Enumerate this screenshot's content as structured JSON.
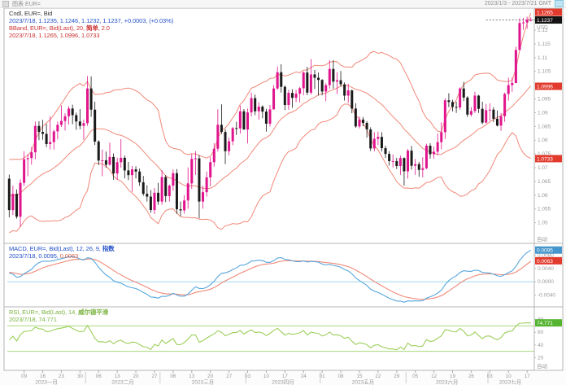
{
  "header": {
    "title": "图表 EUR=",
    "range": "2023/1/3 - 2023/7/21 GMT"
  },
  "colors": {
    "up": "#e0148c",
    "down": "#1a1a1a",
    "band": "#f08878",
    "macd": "#58a6dc",
    "signal": "#f08878",
    "zero_line": "#aadcf0",
    "rsi": "#9ccf5a",
    "rsi_level": "#aad87c",
    "badge_red": "#e23b2e",
    "badge_black": "#141414",
    "badge_blue": "#4496cc",
    "badge_green": "#55b430",
    "axis_text": "#999999",
    "frame": "#b5b5b5",
    "last_price_line": "#555555",
    "marker_green": "#3fae2a"
  },
  "legend_price": {
    "line1": "Cndl, EUR=, Bid",
    "line2": "2023/7/18, 1.1235, 1.1246, 1.1232, 1.1237, +0.0003, (+0.03%)",
    "line3_pre": "BBand, EUR=, Bid(Last), 20, ",
    "line3_type": "简单",
    "line3_post": ", 2.0",
    "line4": "2023/7/18, 1.1265, 1.0996, 1.0733"
  },
  "legend_macd": {
    "line1_pre": "MACD, EUR=, Bid(Last), 12, 26, 9, ",
    "line1_type": "指数",
    "line2_pre": "2023/7/18, 0.0095, ",
    "line2_signal": "0.0063"
  },
  "legend_rsi": {
    "line1_pre": "RSI, EUR=, Bid(Last), 14, ",
    "line1_type": "威尔德平滑",
    "line2": "2023/7/18, 74.771"
  },
  "chart_data": {
    "type": "candlestick",
    "title": "EUR=, Bid, daily candles with BBand(20,2), MACD(12,26,9), RSI(14)",
    "x_range_label": "2023/1/3 - 2023/7/21 GMT",
    "x_axis": {
      "day_tick_indices": [
        4,
        9,
        14,
        19,
        24,
        29,
        34,
        39,
        44,
        49,
        54,
        59,
        64,
        69,
        74,
        79,
        84,
        89,
        94,
        99,
        104,
        109,
        114,
        119,
        124,
        129,
        134,
        139
      ],
      "day_tick_labels": [
        "09",
        "16",
        "23",
        "30",
        "06",
        "13",
        "20",
        "27",
        "06",
        "13",
        "20",
        "27",
        "03",
        "10",
        "17",
        "24",
        "01",
        "08",
        "15",
        "22",
        "29",
        "05",
        "12",
        "19",
        "26",
        "03",
        "10",
        "17"
      ],
      "months": [
        {
          "label": "2023一月",
          "start": 0,
          "end": 20
        },
        {
          "label": "2023二月",
          "start": 21,
          "end": 40
        },
        {
          "label": "2023三月",
          "start": 41,
          "end": 63
        },
        {
          "label": "2023四月",
          "start": 64,
          "end": 83
        },
        {
          "label": "2023五月",
          "start": 84,
          "end": 106
        },
        {
          "label": "2023六月",
          "start": 107,
          "end": 128
        },
        {
          "label": "2023七月",
          "start": 129,
          "end": 140
        }
      ]
    },
    "price_pane": {
      "ylim": [
        1.0425,
        1.128
      ],
      "ticks": [
        1.12,
        1.115,
        1.11,
        1.105,
        1.1,
        1.095,
        1.09,
        1.085,
        1.08,
        1.075,
        1.07,
        1.065,
        1.06,
        1.055,
        1.05
      ],
      "unit_label": "USD",
      "scale_mode_label": "自动",
      "bb_period": 20,
      "bb_width": 2,
      "badges": [
        {
          "value": 1.1265,
          "label": "1.1265",
          "type": "red"
        },
        {
          "value": 1.1237,
          "label": "1.1237",
          "type": "black"
        },
        {
          "value": 1.0996,
          "label": "1.0996",
          "type": "red"
        },
        {
          "value": 1.0733,
          "label": "1.0733",
          "type": "red"
        }
      ],
      "last_close": 1.1237,
      "warmup_closes": [
        1.0527,
        1.0535,
        1.049,
        1.0467,
        1.0503,
        1.0551,
        1.0559,
        1.0627,
        1.063,
        1.0638,
        1.0685,
        1.0635,
        1.0661,
        1.0633,
        1.061,
        1.0637,
        1.064,
        1.0655,
        1.0705
      ],
      "candles": [
        [
          1.066,
          1.0675,
          1.0519,
          1.0546
        ],
        [
          1.0546,
          1.0635,
          1.0528,
          1.0605
        ],
        [
          1.0605,
          1.0621,
          1.0515,
          1.0522
        ],
        [
          1.0522,
          1.0658,
          1.0484,
          1.0645
        ],
        [
          1.0645,
          1.076,
          1.0634,
          1.0731
        ],
        [
          1.0731,
          1.0749,
          1.0669,
          1.0735
        ],
        [
          1.0735,
          1.0776,
          1.0711,
          1.0756
        ],
        [
          1.0756,
          1.0868,
          1.0731,
          1.0852
        ],
        [
          1.0852,
          1.0869,
          1.08,
          1.083
        ],
        [
          1.083,
          1.0874,
          1.0802,
          1.0823
        ],
        [
          1.0823,
          1.086,
          1.0775,
          1.0786
        ],
        [
          1.0786,
          1.0887,
          1.0766,
          1.0793
        ],
        [
          1.0793,
          1.0838,
          1.0766,
          1.0832
        ],
        [
          1.0832,
          1.0868,
          1.0803,
          1.0856
        ],
        [
          1.0856,
          1.0927,
          1.0848,
          1.087
        ],
        [
          1.087,
          1.0898,
          1.0835,
          1.0887
        ],
        [
          1.0887,
          1.0924,
          1.0857,
          1.0915
        ],
        [
          1.0915,
          1.0929,
          1.0858,
          1.0891
        ],
        [
          1.0891,
          1.09,
          1.0838,
          1.0868
        ],
        [
          1.0868,
          1.0913,
          1.084,
          1.0852
        ],
        [
          1.0852,
          1.0875,
          1.0802,
          1.0862
        ],
        [
          1.0862,
          1.1033,
          1.0852,
          1.0988
        ],
        [
          1.0988,
          1.1032,
          1.0885,
          1.0911
        ],
        [
          1.0911,
          1.094,
          1.0782,
          1.0795
        ],
        [
          1.0795,
          1.08,
          1.0709,
          1.0726
        ],
        [
          1.0726,
          1.0766,
          1.0669,
          1.0727
        ],
        [
          1.0727,
          1.0759,
          1.07,
          1.0711
        ],
        [
          1.0711,
          1.0791,
          1.0707,
          1.0739
        ],
        [
          1.0739,
          1.0752,
          1.0656,
          1.0679
        ],
        [
          1.0679,
          1.0736,
          1.0656,
          1.072
        ],
        [
          1.072,
          1.0804,
          1.07,
          1.0736
        ],
        [
          1.0736,
          1.0744,
          1.0661,
          1.069
        ],
        [
          1.069,
          1.0721,
          1.0655,
          1.0673
        ],
        [
          1.0673,
          1.0706,
          1.0612,
          1.0694
        ],
        [
          1.0694,
          1.0705,
          1.0661,
          1.0686
        ],
        [
          1.0686,
          1.0697,
          1.0634,
          1.0647
        ],
        [
          1.0647,
          1.067,
          1.0598,
          1.0605
        ],
        [
          1.0605,
          1.0636,
          1.0577,
          1.0595
        ],
        [
          1.0595,
          1.0619,
          1.0536,
          1.0546
        ],
        [
          1.0546,
          1.0626,
          1.0532,
          1.0609
        ],
        [
          1.0609,
          1.0645,
          1.0565,
          1.0577
        ],
        [
          1.0577,
          1.0691,
          1.0565,
          1.0666
        ],
        [
          1.0666,
          1.0673,
          1.0575,
          1.0597
        ],
        [
          1.0597,
          1.0639,
          1.0577,
          1.0635
        ],
        [
          1.0635,
          1.0694,
          1.0616,
          1.068
        ],
        [
          1.068,
          1.0695,
          1.0532,
          1.0549
        ],
        [
          1.0549,
          1.0577,
          1.0524,
          1.0545
        ],
        [
          1.0545,
          1.06,
          1.0533,
          1.0581
        ],
        [
          1.0581,
          1.0701,
          1.0551,
          1.0643
        ],
        [
          1.0643,
          1.0749,
          1.0623,
          1.0732
        ],
        [
          1.0732,
          1.076,
          1.0674,
          1.0734
        ],
        [
          1.0734,
          1.0746,
          1.0516,
          1.0577
        ],
        [
          1.0577,
          1.0635,
          1.0551,
          1.0611
        ],
        [
          1.0611,
          1.0686,
          1.0595,
          1.0665
        ],
        [
          1.0665,
          1.0738,
          1.0632,
          1.072
        ],
        [
          1.072,
          1.0789,
          1.0704,
          1.0769
        ],
        [
          1.0769,
          1.0912,
          1.0759,
          1.0856
        ],
        [
          1.0856,
          1.093,
          1.0823,
          1.083
        ],
        [
          1.083,
          1.084,
          1.0713,
          1.076
        ],
        [
          1.076,
          1.081,
          1.0745,
          1.0796
        ],
        [
          1.0796,
          1.0848,
          1.0782,
          1.0844
        ],
        [
          1.0844,
          1.0867,
          1.0819,
          1.0843
        ],
        [
          1.0843,
          1.0926,
          1.0824,
          1.0905
        ],
        [
          1.0905,
          1.0913,
          1.0838,
          1.0839
        ],
        [
          1.0839,
          1.0915,
          1.0788,
          1.0901
        ],
        [
          1.0901,
          1.0973,
          1.0886,
          1.0953
        ],
        [
          1.0953,
          1.0966,
          1.0891,
          1.0905
        ],
        [
          1.0905,
          1.0938,
          1.0875,
          1.0922
        ],
        [
          1.0922,
          1.0927,
          1.088,
          1.0904
        ],
        [
          1.0904,
          1.0914,
          1.0831,
          1.086
        ],
        [
          1.086,
          1.0928,
          1.085,
          1.0912
        ],
        [
          1.0912,
          1.1,
          1.0911,
          1.0988
        ],
        [
          1.0988,
          1.1068,
          1.0983,
          1.1047
        ],
        [
          1.1047,
          1.1076,
          1.0973,
          1.0994
        ],
        [
          1.0994,
          1.0999,
          1.0909,
          1.0928
        ],
        [
          1.0928,
          1.0983,
          1.0911,
          1.0972
        ],
        [
          1.0972,
          1.0985,
          1.0918,
          1.0954
        ],
        [
          1.0954,
          1.0983,
          1.0938,
          1.0969
        ],
        [
          1.0969,
          1.0994,
          1.0937,
          1.0989
        ],
        [
          1.0989,
          1.105,
          1.0963,
          1.1046
        ],
        [
          1.1046,
          1.1067,
          1.0964,
          1.0973
        ],
        [
          1.0973,
          1.1095,
          1.0966,
          1.1039
        ],
        [
          1.1039,
          1.1055,
          1.0986,
          1.1027
        ],
        [
          1.1027,
          1.1046,
          1.0962,
          1.1019
        ],
        [
          1.1019,
          1.1022,
          1.0963,
          1.0977
        ],
        [
          1.0977,
          1.1007,
          1.0942,
          1.1
        ],
        [
          1.1,
          1.1091,
          1.0987,
          1.1059
        ],
        [
          1.1059,
          1.1091,
          1.0987,
          1.1013
        ],
        [
          1.1013,
          1.1047,
          1.0968,
          1.1018
        ],
        [
          1.1018,
          1.1052,
          1.0995,
          1.1003
        ],
        [
          1.1003,
          1.101,
          1.0944,
          1.0962
        ],
        [
          1.0962,
          1.1005,
          1.0936,
          1.0981
        ],
        [
          1.0981,
          1.0984,
          1.0898,
          1.0915
        ],
        [
          1.0915,
          1.0934,
          1.0845,
          1.085
        ],
        [
          1.085,
          1.0887,
          1.0843,
          1.0875
        ],
        [
          1.0875,
          1.0884,
          1.0851,
          1.0863
        ],
        [
          1.0863,
          1.0869,
          1.0809,
          1.0839
        ],
        [
          1.0839,
          1.0847,
          1.0761,
          1.077
        ],
        [
          1.077,
          1.0829,
          1.076,
          1.0805
        ],
        [
          1.0805,
          1.0831,
          1.0782,
          1.0812
        ],
        [
          1.0812,
          1.0829,
          1.0759,
          1.0771
        ],
        [
          1.0771,
          1.078,
          1.0735,
          1.075
        ],
        [
          1.075,
          1.076,
          1.0708,
          1.0724
        ],
        [
          1.0724,
          1.0748,
          1.0701,
          1.0724
        ],
        [
          1.0724,
          1.0736,
          1.0695,
          1.0706
        ],
        [
          1.0706,
          1.0744,
          1.0674,
          1.0735
        ],
        [
          1.0735,
          1.0738,
          1.0635,
          1.0687
        ],
        [
          1.0687,
          1.0768,
          1.0661,
          1.0762
        ],
        [
          1.0762,
          1.0779,
          1.0693,
          1.0707
        ],
        [
          1.0707,
          1.0732,
          1.0674,
          1.0713
        ],
        [
          1.0713,
          1.0721,
          1.0667,
          1.0692
        ],
        [
          1.0692,
          1.0738,
          1.0665,
          1.0698
        ],
        [
          1.0698,
          1.0787,
          1.0695,
          1.078
        ],
        [
          1.078,
          1.0789,
          1.0733,
          1.0749
        ],
        [
          1.0749,
          1.0777,
          1.0733,
          1.0758
        ],
        [
          1.0758,
          1.0824,
          1.0745,
          1.0793
        ],
        [
          1.0793,
          1.0865,
          1.0767,
          1.0829
        ],
        [
          1.0829,
          1.0952,
          1.0805,
          1.0945
        ],
        [
          1.0945,
          1.0971,
          1.092,
          1.0939
        ],
        [
          1.0939,
          1.0947,
          1.0905,
          1.0921
        ],
        [
          1.0921,
          1.094,
          1.0899,
          1.0919
        ],
        [
          1.0919,
          1.0992,
          1.0911,
          1.0988
        ],
        [
          1.0988,
          1.1012,
          1.0942,
          1.0955
        ],
        [
          1.0955,
          1.096,
          1.0884,
          1.0893
        ],
        [
          1.0893,
          1.092,
          1.0886,
          1.0906
        ],
        [
          1.0906,
          1.0976,
          1.0899,
          1.0962
        ],
        [
          1.0962,
          1.0965,
          1.0899,
          1.0914
        ],
        [
          1.0914,
          1.094,
          1.0858,
          1.0864
        ],
        [
          1.0864,
          1.0932,
          1.0861,
          1.0909
        ],
        [
          1.0909,
          1.0934,
          1.0871,
          1.0911
        ],
        [
          1.0911,
          1.092,
          1.0866,
          1.0878
        ],
        [
          1.0878,
          1.0908,
          1.085,
          1.0853
        ],
        [
          1.0853,
          1.0899,
          1.0834,
          1.0887
        ],
        [
          1.0887,
          1.0973,
          1.0867,
          1.0968
        ],
        [
          1.0968,
          1.1027,
          1.0944,
          1.1
        ],
        [
          1.1,
          1.1027,
          1.0976,
          1.1008
        ],
        [
          1.1008,
          1.114,
          1.1007,
          1.1128
        ],
        [
          1.1128,
          1.1243,
          1.1127,
          1.1226
        ],
        [
          1.1226,
          1.1245,
          1.1201,
          1.1228
        ],
        [
          1.1228,
          1.1249,
          1.1205,
          1.1238
        ],
        [
          1.1235,
          1.1246,
          1.1232,
          1.1237
        ]
      ]
    },
    "macd_pane": {
      "ylim": [
        -0.0075,
        0.0115
      ],
      "ticks": [
        0.008,
        0.004,
        0,
        -0.004
      ],
      "params": [
        12,
        26,
        9
      ],
      "badges": [
        {
          "value": 0.0095,
          "label": "0.0095",
          "type": "blue"
        },
        {
          "value": 0.0063,
          "label": "0.0063",
          "type": "red"
        }
      ],
      "last": {
        "macd": 0.0095,
        "signal": 0.0063
      }
    },
    "rsi_pane": {
      "ylim": [
        0,
        100
      ],
      "ticks": [
        80,
        60,
        40,
        20
      ],
      "levels": [
        70,
        30
      ],
      "period": 14,
      "scale_mode_label": "自动",
      "badge": {
        "value": 74.771,
        "label": "74.771",
        "type": "green"
      },
      "last": 74.771
    }
  }
}
